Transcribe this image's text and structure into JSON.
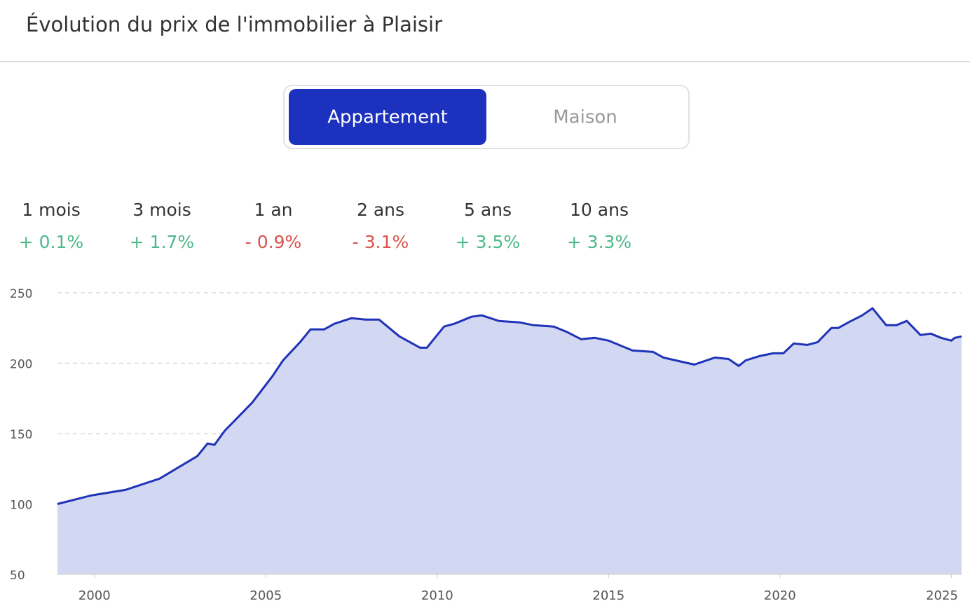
{
  "header": {
    "title": "Évolution du prix de l'immobilier à Plaisir"
  },
  "tabs": {
    "items": [
      "Appartement",
      "Maison"
    ],
    "active": 0,
    "active_color": "#1c31bd"
  },
  "stats": [
    {
      "period": "1 mois",
      "change": "+ 0.1%",
      "color": "#4db88a"
    },
    {
      "period": "3 mois",
      "change": "+ 1.7%",
      "color": "#4db88a"
    },
    {
      "period": "1 an",
      "change": "- 0.9%",
      "color": "#d9534a"
    },
    {
      "period": "2 ans",
      "change": "- 3.1%",
      "color": "#d9534a"
    },
    {
      "period": "5 ans",
      "change": "+ 3.5%",
      "color": "#4db88a"
    },
    {
      "period": "10 ans",
      "change": "+ 3.3%",
      "color": "#4db88a"
    }
  ],
  "chart_data": {
    "type": "area",
    "x": [
      1998.92,
      1999.9,
      2000.9,
      2001.9,
      2003.0,
      2003.3,
      2003.5,
      2003.8,
      2004.2,
      2004.6,
      2005.2,
      2005.5,
      2006.0,
      2006.3,
      2006.7,
      2007.0,
      2007.5,
      2007.9,
      2008.3,
      2008.9,
      2009.5,
      2009.7,
      2010.2,
      2010.5,
      2011.0,
      2011.3,
      2011.8,
      2012.4,
      2012.8,
      2013.4,
      2013.8,
      2014.2,
      2014.6,
      2015.0,
      2015.7,
      2016.3,
      2016.6,
      2017.5,
      2018.1,
      2018.5,
      2018.8,
      2019.0,
      2019.4,
      2019.8,
      2020.1,
      2020.4,
      2020.8,
      2021.1,
      2021.5,
      2021.7,
      2022.0,
      2022.4,
      2022.7,
      2023.1,
      2023.4,
      2023.7,
      2024.1,
      2024.4,
      2024.7,
      2025.0,
      2025.1,
      2025.3
    ],
    "values": [
      100,
      106,
      110,
      118,
      134,
      143,
      142,
      152,
      162,
      172,
      191,
      202,
      215,
      224,
      224,
      228,
      232,
      231,
      231,
      219,
      211,
      211,
      226,
      228,
      233,
      234,
      230,
      229,
      227,
      226,
      222,
      217,
      218,
      216,
      209,
      208,
      204,
      199,
      204,
      203,
      198,
      202,
      205,
      207,
      207,
      214,
      213,
      215,
      225,
      225,
      229,
      234,
      239,
      227,
      227,
      230,
      220,
      221,
      218,
      216,
      218,
      219
    ],
    "color": "#1f33b8",
    "fill_color": "#d3d8f2",
    "xlim": [
      1998.92,
      2025.3
    ],
    "ylim": [
      50,
      250
    ],
    "xticks": [
      2000,
      2005,
      2010,
      2015,
      2020,
      2025
    ],
    "yticks": [
      50,
      100,
      150,
      200,
      250
    ],
    "grid": true
  }
}
